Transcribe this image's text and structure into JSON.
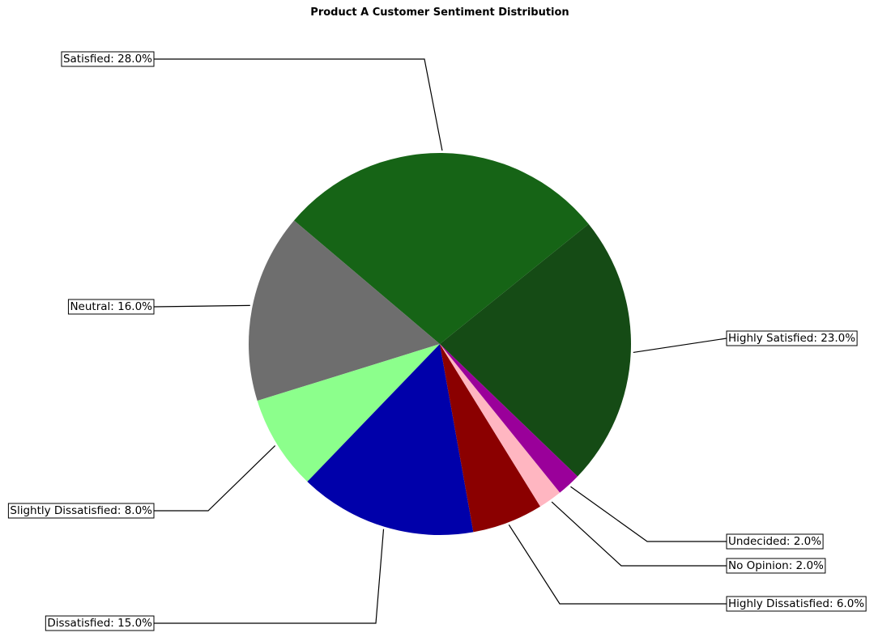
{
  "chart_data": {
    "type": "pie",
    "title": "Product A Customer Sentiment Distribution",
    "slices": [
      {
        "label": "Highly Satisfied",
        "value": 23.0,
        "display": "Highly Satisfied: 23.0%",
        "color": "#154b15"
      },
      {
        "label": "Satisfied",
        "value": 28.0,
        "display": "Satisfied: 28.0%",
        "color": "#166416"
      },
      {
        "label": "Neutral",
        "value": 16.0,
        "display": "Neutral: 16.0%",
        "color": "#6e6e6e"
      },
      {
        "label": "Slightly Dissatisfied",
        "value": 8.0,
        "display": "Slightly Dissatisfied: 8.0%",
        "color": "#8cff8c"
      },
      {
        "label": "Dissatisfied",
        "value": 15.0,
        "display": "Dissatisfied: 15.0%",
        "color": "#0000aa"
      },
      {
        "label": "Highly Dissatisfied",
        "value": 6.0,
        "display": "Highly Dissatisfied: 6.0%",
        "color": "#8b0000"
      },
      {
        "label": "No Opinion",
        "value": 2.0,
        "display": "No Opinion: 2.0%",
        "color": "#ffb6c1"
      },
      {
        "label": "Undecided",
        "value": 2.0,
        "display": "Undecided: 2.0%",
        "color": "#9a009a"
      }
    ]
  }
}
